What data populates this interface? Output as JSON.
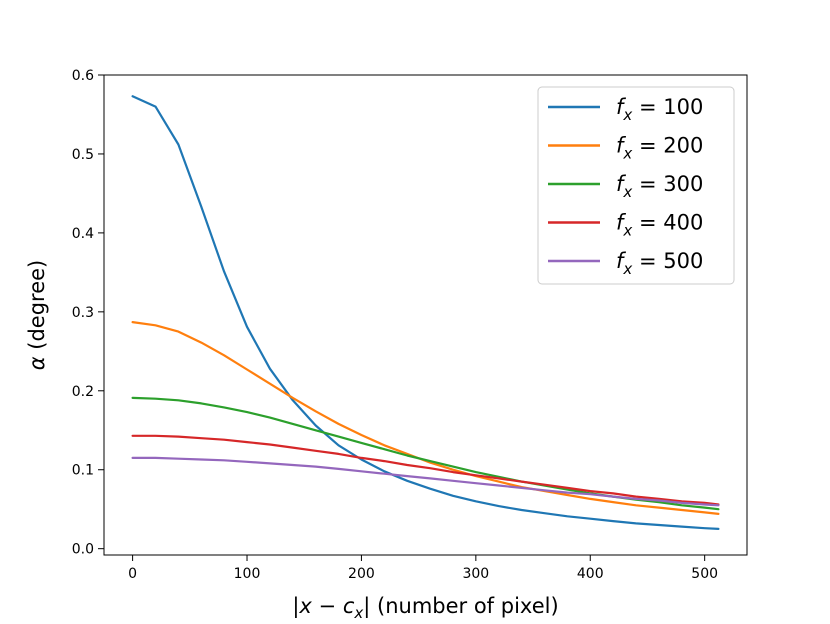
{
  "chart_data": {
    "type": "line",
    "xlabel": "|x − c_x| (number of pixel)",
    "ylabel": "α (degree)",
    "xlim": [
      -25,
      537
    ],
    "ylim": [
      -0.008,
      0.6
    ],
    "x_ticks": [
      0,
      100,
      200,
      300,
      400,
      500
    ],
    "y_ticks": [
      0.0,
      0.1,
      0.2,
      0.3,
      0.4,
      0.5,
      0.6
    ],
    "x_tick_labels": [
      "0",
      "100",
      "200",
      "300",
      "400",
      "500"
    ],
    "y_tick_labels": [
      "0.0",
      "0.1",
      "0.2",
      "0.3",
      "0.4",
      "0.5",
      "0.6"
    ],
    "legend_position": "top-right",
    "grid": false,
    "x": [
      0,
      20,
      40,
      60,
      80,
      100,
      120,
      140,
      160,
      180,
      200,
      220,
      240,
      260,
      280,
      300,
      320,
      340,
      360,
      380,
      400,
      420,
      440,
      460,
      480,
      500,
      512
    ],
    "series": [
      {
        "name": "f_x = 100",
        "fx": 100,
        "color": "#1f77b4",
        "values": [
          0.573,
          0.56,
          0.512,
          0.433,
          0.351,
          0.281,
          0.228,
          0.188,
          0.156,
          0.131,
          0.113,
          0.098,
          0.086,
          0.076,
          0.067,
          0.06,
          0.054,
          0.049,
          0.045,
          0.041,
          0.038,
          0.035,
          0.032,
          0.03,
          0.028,
          0.026,
          0.025
        ]
      },
      {
        "name": "f_x = 200",
        "fx": 200,
        "color": "#ff7f0e",
        "values": [
          0.287,
          0.283,
          0.275,
          0.261,
          0.245,
          0.227,
          0.209,
          0.191,
          0.174,
          0.158,
          0.144,
          0.131,
          0.12,
          0.109,
          0.1,
          0.092,
          0.085,
          0.078,
          0.073,
          0.068,
          0.063,
          0.059,
          0.055,
          0.052,
          0.049,
          0.046,
          0.044
        ]
      },
      {
        "name": "f_x = 300",
        "fx": 300,
        "color": "#2ca02c",
        "values": [
          0.191,
          0.19,
          0.188,
          0.184,
          0.179,
          0.173,
          0.166,
          0.158,
          0.15,
          0.142,
          0.134,
          0.126,
          0.118,
          0.111,
          0.104,
          0.097,
          0.091,
          0.085,
          0.08,
          0.075,
          0.07,
          0.066,
          0.062,
          0.059,
          0.055,
          0.052,
          0.05
        ]
      },
      {
        "name": "f_x = 400",
        "fx": 400,
        "color": "#d62728",
        "values": [
          0.143,
          0.143,
          0.142,
          0.14,
          0.138,
          0.135,
          0.132,
          0.128,
          0.124,
          0.12,
          0.115,
          0.111,
          0.106,
          0.102,
          0.097,
          0.093,
          0.089,
          0.085,
          0.081,
          0.077,
          0.073,
          0.07,
          0.066,
          0.063,
          0.06,
          0.058,
          0.056
        ]
      },
      {
        "name": "f_x = 500",
        "fx": 500,
        "color": "#9467bd",
        "values": [
          0.115,
          0.115,
          0.114,
          0.113,
          0.112,
          0.11,
          0.108,
          0.106,
          0.104,
          0.101,
          0.098,
          0.095,
          0.092,
          0.089,
          0.086,
          0.083,
          0.08,
          0.077,
          0.074,
          0.071,
          0.069,
          0.066,
          0.063,
          0.061,
          0.058,
          0.056,
          0.055
        ]
      }
    ]
  }
}
